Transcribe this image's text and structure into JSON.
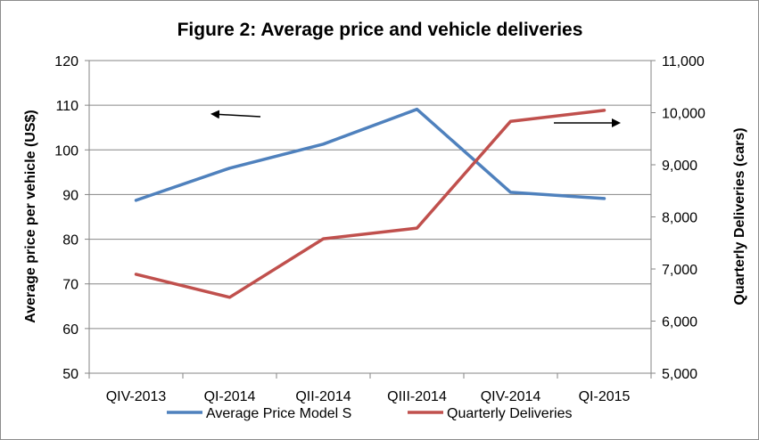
{
  "chart_data": {
    "type": "line",
    "title": "Figure 2: Average price and vehicle deliveries",
    "categories": [
      "QIV-2013",
      "QI-2014",
      "QII-2014",
      "QIII-2014",
      "QIV-2014",
      "QI-2015"
    ],
    "ylabel_left": "Average price per vehicle (US$)",
    "ylabel_right": "Quarterly Deliveries (cars)",
    "ylim_left": [
      50,
      120
    ],
    "yticks_left": [
      "50",
      "60",
      "70",
      "80",
      "90",
      "100",
      "110",
      "120"
    ],
    "ylim_right": [
      5000,
      11000
    ],
    "yticks_right": [
      "5,000",
      "6,000",
      "7,000",
      "8,000",
      "9,000",
      "10,000",
      "11,000"
    ],
    "grid": true,
    "legend_position": "bottom",
    "series": [
      {
        "name": "Average Price Model S",
        "axis": "left",
        "color": "#4f81bd",
        "values": [
          88.7,
          95.9,
          101.3,
          109.1,
          90.5,
          89.1
        ]
      },
      {
        "name": "Quarterly Deliveries",
        "axis": "right",
        "color": "#c0504d",
        "values": [
          6900,
          6457,
          7579,
          7785,
          9834,
          10045
        ]
      }
    ],
    "annotations": [
      {
        "type": "arrow",
        "direction": "left",
        "meaning": "left-axis series"
      },
      {
        "type": "arrow",
        "direction": "right",
        "meaning": "right-axis series"
      }
    ]
  }
}
